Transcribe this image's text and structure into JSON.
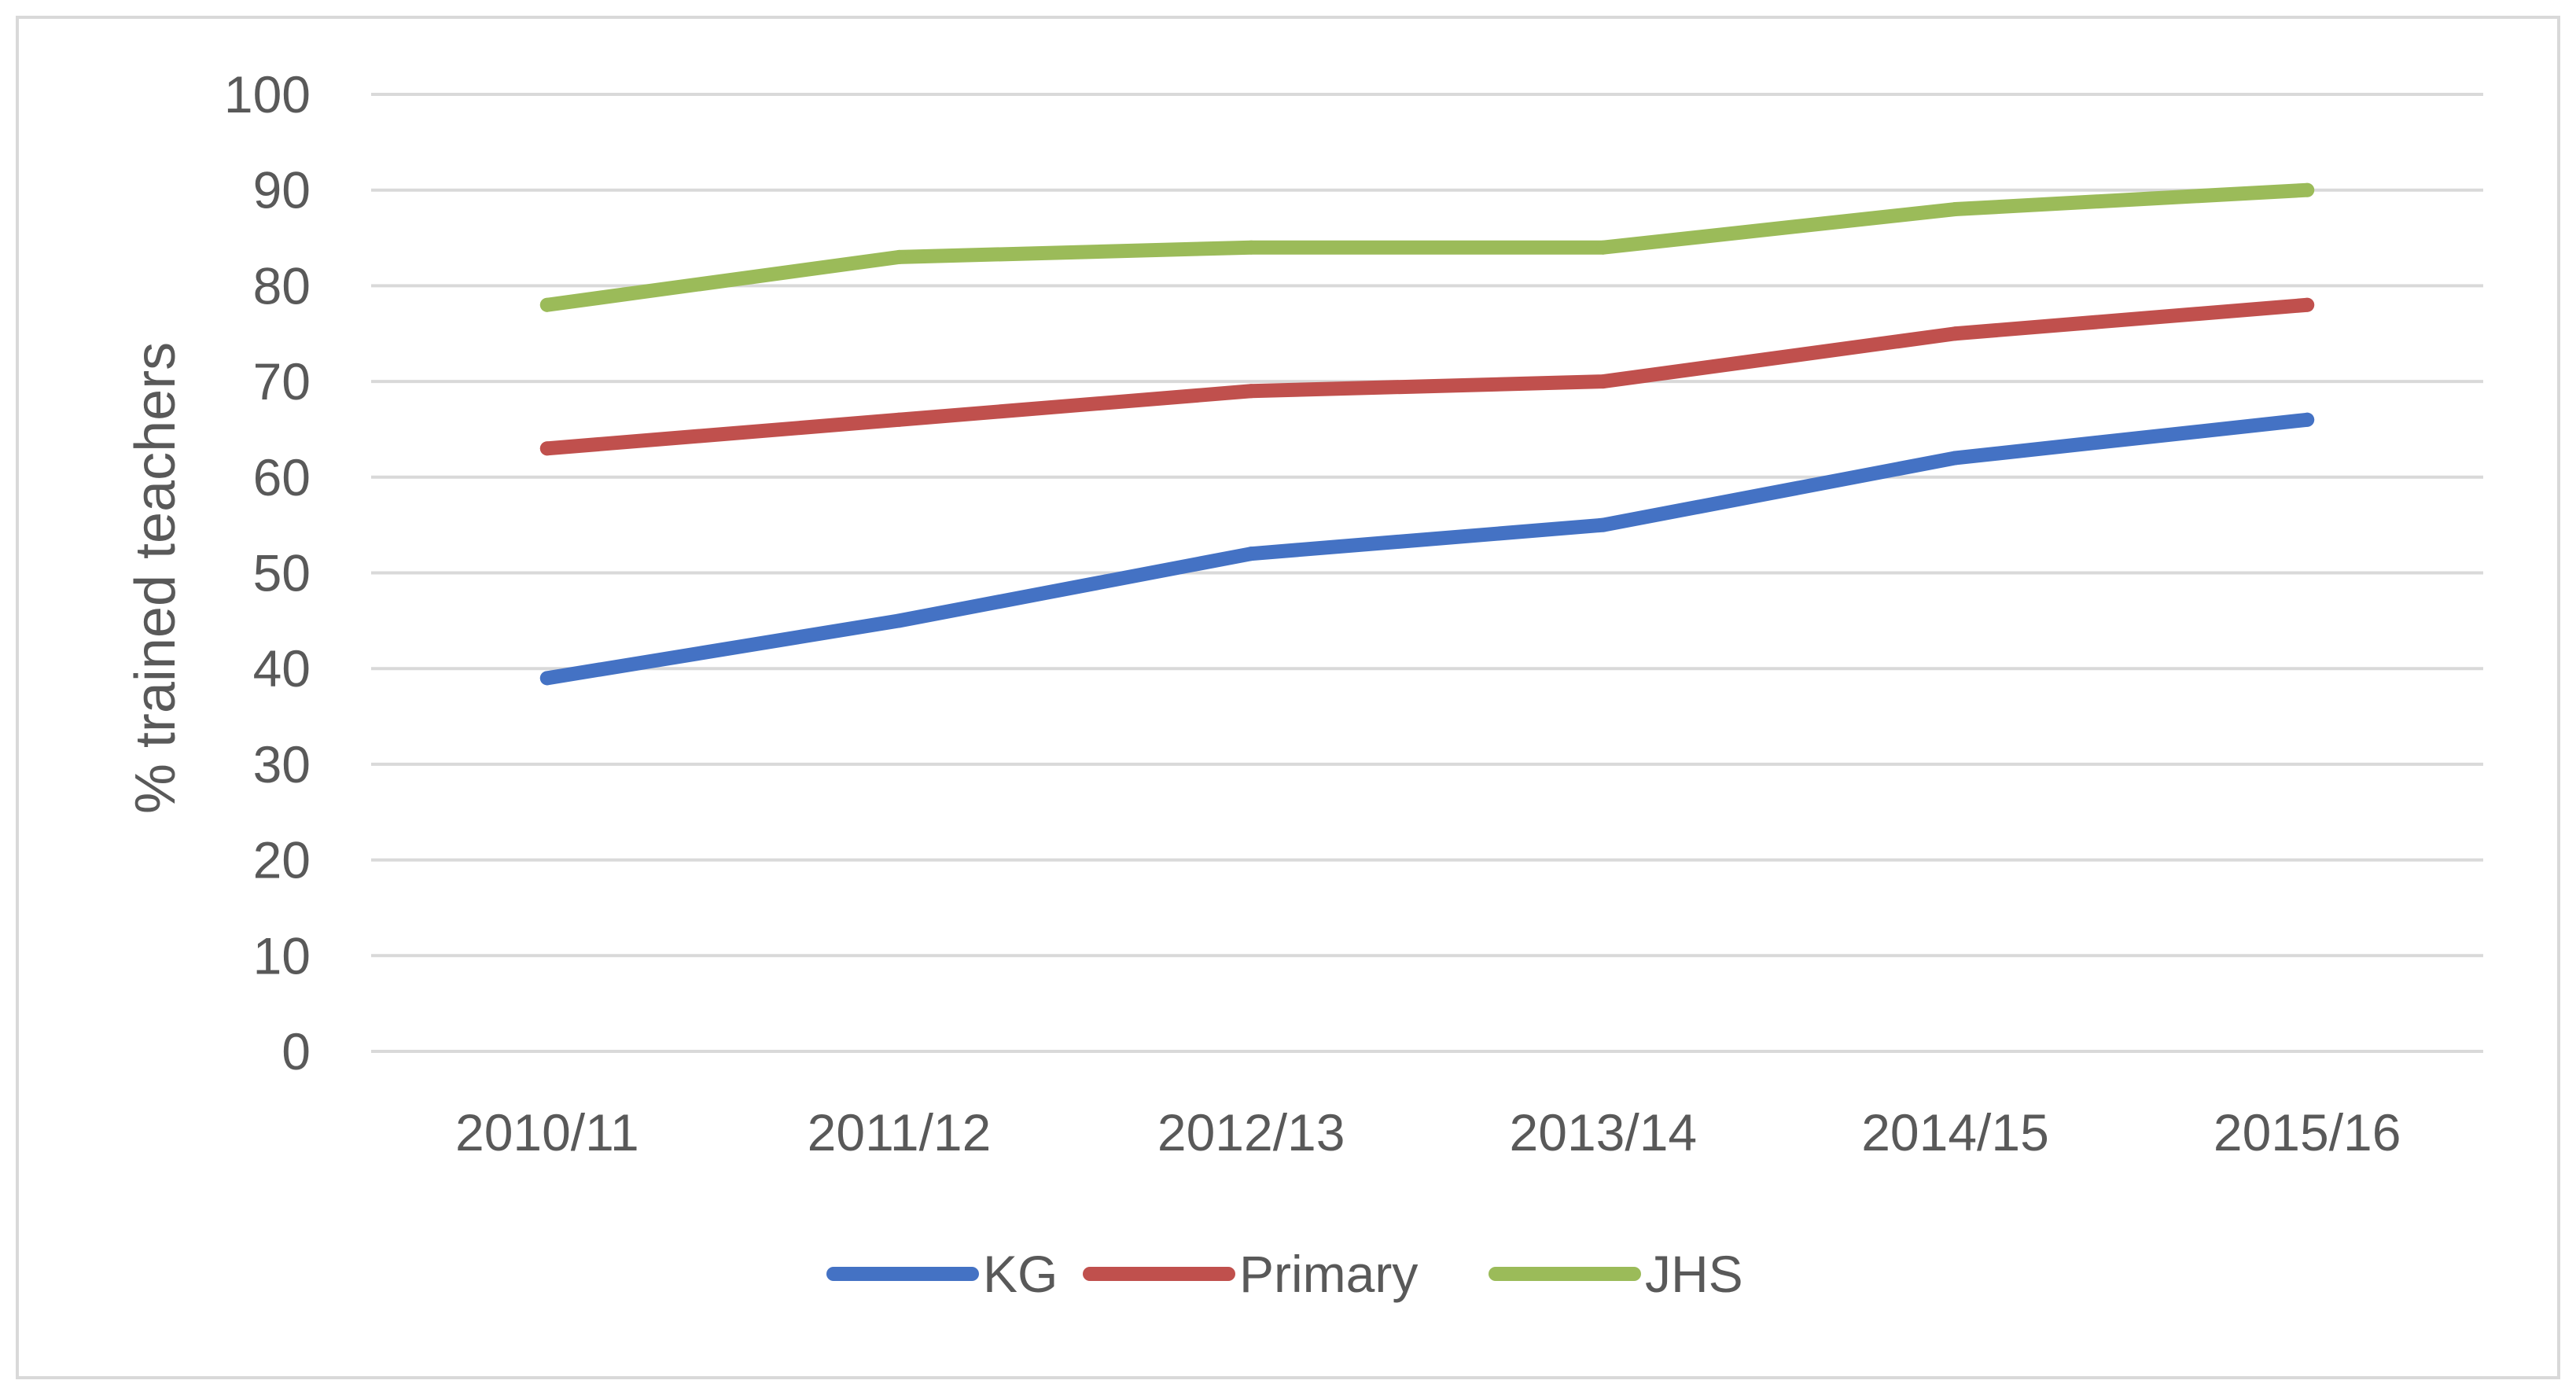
{
  "chart_data": {
    "type": "line",
    "title": "",
    "xlabel": "",
    "ylabel": "% trained teachers",
    "categories": [
      "2010/11",
      "2011/12",
      "2012/13",
      "2013/14",
      "2014/15",
      "2015/16"
    ],
    "ylim": [
      0,
      100
    ],
    "yticks": [
      0,
      10,
      20,
      30,
      40,
      50,
      60,
      70,
      80,
      90,
      100
    ],
    "grid": true,
    "legend_position": "bottom",
    "series": [
      {
        "name": "KG",
        "color": "#4472c4",
        "values": [
          39,
          45,
          52,
          55,
          62,
          66
        ]
      },
      {
        "name": "Primary",
        "color": "#c0504d",
        "values": [
          63,
          66,
          69,
          70,
          75,
          78
        ]
      },
      {
        "name": "JHS",
        "color": "#9bbb59",
        "values": [
          78,
          83,
          84,
          84,
          88,
          90
        ]
      }
    ]
  }
}
